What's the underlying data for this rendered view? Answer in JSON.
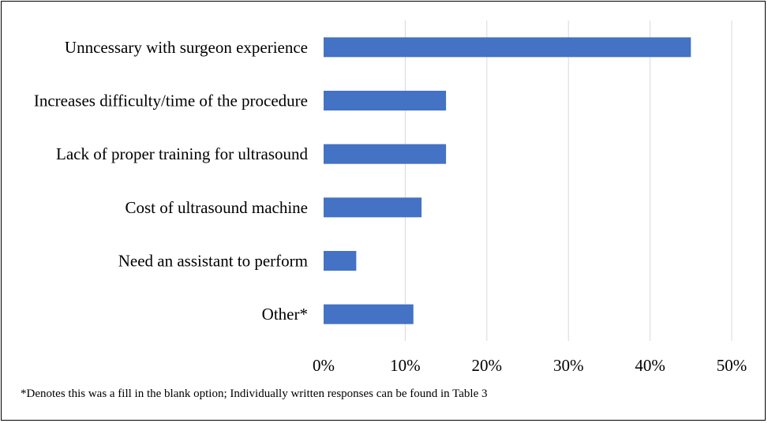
{
  "chart_data": {
    "type": "bar",
    "orientation": "horizontal",
    "categories": [
      "Unncessary with surgeon experience",
      "Increases difficulty/time of the procedure",
      "Lack of proper training for ultrasound",
      "Cost of ultrasound machine",
      "Need an assistant to perform",
      "Other*"
    ],
    "values": [
      45,
      15,
      15,
      12,
      4,
      11
    ],
    "xlim": [
      0,
      50
    ],
    "xticks": [
      0,
      10,
      20,
      30,
      40,
      50
    ],
    "xtick_labels": [
      "0%",
      "10%",
      "20%",
      "30%",
      "40%",
      "50%"
    ],
    "grid": "vertical",
    "bar_color": "#4472c4",
    "grid_color": "#d9d9d9",
    "legend": "none"
  },
  "footnote": "*Denotes this was a fill in the blank option; Individually written responses can be found in Table 3"
}
